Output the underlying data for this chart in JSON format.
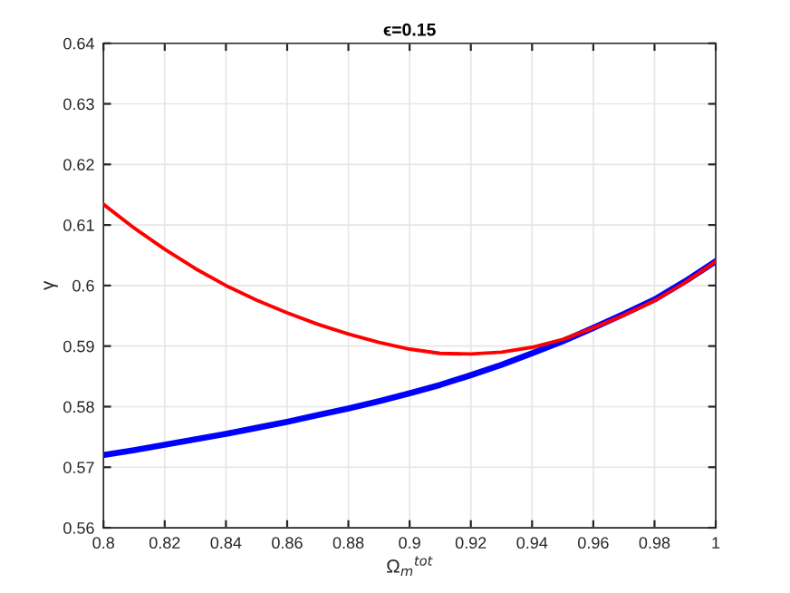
{
  "chart_data": {
    "type": "line",
    "title": "ϵ=0.15",
    "xlabel": "Ω$_{m}$$^{tot}$",
    "ylabel": "γ",
    "x": [
      0.8,
      0.81,
      0.82,
      0.83,
      0.84,
      0.85,
      0.86,
      0.87,
      0.88,
      0.89,
      0.9,
      0.91,
      0.92,
      0.93,
      0.94,
      0.95,
      0.96,
      0.97,
      0.98,
      0.99,
      1
    ],
    "series": [
      {
        "color": "#0000ff",
        "values": [
          0.572,
          0.5728,
          0.5737,
          0.5746,
          0.5755,
          0.5765,
          0.5775,
          0.5786,
          0.5797,
          0.5809,
          0.5822,
          0.5836,
          0.5852,
          0.5869,
          0.5888,
          0.5908,
          0.593,
          0.5953,
          0.5977,
          0.6007,
          0.604
        ]
      },
      {
        "color": "#ff0000",
        "values": [
          0.6134,
          0.6095,
          0.606,
          0.6028,
          0.6,
          0.5976,
          0.5955,
          0.5936,
          0.592,
          0.5906,
          0.5895,
          0.5888,
          0.5887,
          0.589,
          0.5898,
          0.5911,
          0.593,
          0.5951,
          0.5975,
          0.6005,
          0.604
        ]
      }
    ],
    "xlim": [
      0.8,
      1
    ],
    "ylim": [
      0.56,
      0.64
    ],
    "xticks": [
      0.8,
      0.82,
      0.84,
      0.86,
      0.88,
      0.9,
      0.92,
      0.94,
      0.96,
      0.98,
      1
    ],
    "yticks": [
      0.56,
      0.57,
      0.58,
      0.59,
      0.6,
      0.61,
      0.62,
      0.63,
      0.64
    ],
    "grid": true
  }
}
